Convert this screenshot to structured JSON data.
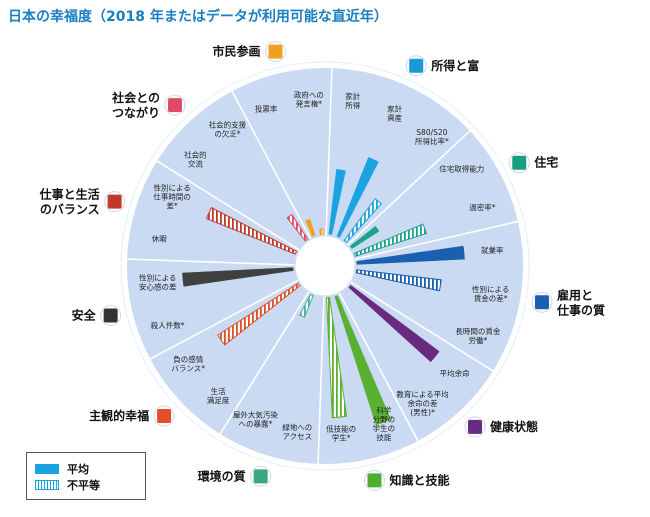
{
  "title": "日本の幸福度（2018 年またはデータが利用可能な直近年）",
  "legend": {
    "average": "平均",
    "inequality": "不平等"
  },
  "colors": {
    "ring": "#c9daf2",
    "separator": "#ffffff",
    "income": "#1aa3e0",
    "housing": "#1aa38a",
    "jobs": "#1a5fb0",
    "health": "#6a2a80",
    "knowledge": "#5ab030",
    "environment": "#4ab09a",
    "subjective": "#e0502a",
    "safety": "#404040",
    "worklife": "#c0392b",
    "social": "#e04a68",
    "civic": "#f0a020",
    "icon_income": "#1a9ad6",
    "icon_housing": "#15a07f",
    "icon_jobs": "#1a5fb0",
    "icon_health": "#6a2a80",
    "icon_knowledge": "#4caf30",
    "icon_environment": "#3aa77f",
    "icon_subjective": "#e0502a",
    "icon_safety": "#333333",
    "icon_worklife": "#c0392b",
    "icon_social": "#e04a68",
    "icon_civic": "#f0a020"
  },
  "chart_data": {
    "type": "bar",
    "layout": "radial",
    "scale": [
      0,
      1
    ],
    "series": [
      {
        "name": "平均"
      },
      {
        "name": "不平等"
      }
    ],
    "dimensions": [
      {
        "key": "income",
        "label_lines": [
          "所得と富"
        ],
        "color": "income",
        "icon": "money-icon",
        "indicators": [
          {
            "label": [
              "家計",
              "所得"
            ],
            "value": 0.42,
            "kind": "average"
          },
          {
            "label": [
              "家計",
              "資産"
            ],
            "value": 0.55,
            "kind": "average"
          },
          {
            "label": [
              "S80/S20",
              "所得比率*"
            ],
            "value": 0.33,
            "kind": "inequality"
          }
        ]
      },
      {
        "key": "housing",
        "label_lines": [
          "住宅"
        ],
        "color": "housing",
        "icon": "house-icon",
        "indicators": [
          {
            "label": [
              "住宅取得能力"
            ],
            "value": 0.2,
            "kind": "average"
          },
          {
            "label": [
              "過密率*"
            ],
            "value": 0.48,
            "kind": "inequality"
          }
        ]
      },
      {
        "key": "jobs",
        "label_lines": [
          "雇用と",
          "仕事の質"
        ],
        "color": "jobs",
        "icon": "briefcase-icon",
        "indicators": [
          {
            "label": [
              "就業率"
            ],
            "value": 0.7,
            "kind": "average"
          },
          {
            "label": [
              "性別による",
              "賃金の差*"
            ],
            "value": 0.55,
            "kind": "inequality"
          },
          {
            "label": [
              "長時間の賃金",
              "労働*"
            ],
            "value": 0.0,
            "kind": "inequality"
          }
        ]
      },
      {
        "key": "health",
        "label_lines": [
          "健康状態"
        ],
        "color": "health",
        "icon": "health-cross-icon",
        "indicators": [
          {
            "label": [
              "平均余命"
            ],
            "value": 0.72,
            "kind": "average"
          },
          {
            "label": [
              "教育による平均",
              "余命の差",
              "(男性)*"
            ],
            "value": 0.0,
            "kind": "inequality"
          }
        ]
      },
      {
        "key": "knowledge",
        "label_lines": [
          "知識と技能"
        ],
        "color": "knowledge",
        "icon": "book-icon",
        "indicators": [
          {
            "label": [
              "科学",
              "分野の",
              "学生の",
              "技能"
            ],
            "value": 0.88,
            "kind": "average"
          },
          {
            "label": [
              "低技能の",
              "学生*"
            ],
            "value": 0.78,
            "kind": "inequality"
          }
        ]
      },
      {
        "key": "environment",
        "label_lines": [
          "環境の質"
        ],
        "color": "environment",
        "icon": "tree-icon",
        "indicators": [
          {
            "label": [
              "緑地への",
              "アクセス"
            ],
            "value": 0.0,
            "kind": "average"
          },
          {
            "label": [
              "屋外大気汚染",
              "への暴露*"
            ],
            "value": 0.14,
            "kind": "inequality"
          }
        ]
      },
      {
        "key": "subjective",
        "label_lines": [
          "主観的幸福"
        ],
        "color": "subjective",
        "icon": "heart-icon",
        "indicators": [
          {
            "label": [
              "生活",
              "満足度"
            ],
            "value": 0.0,
            "kind": "average"
          },
          {
            "label": [
              "負の感情",
              "バランス*"
            ],
            "value": 0.62,
            "kind": "inequality"
          }
        ]
      },
      {
        "key": "safety",
        "label_lines": [
          "安全"
        ],
        "color": "safety",
        "icon": "runner-icon",
        "indicators": [
          {
            "label": [
              "殺人件数*"
            ],
            "value": 0.0,
            "kind": "average"
          },
          {
            "label": [
              "性別による",
              "安心感の差"
            ],
            "value": 0.72,
            "kind": "average"
          }
        ]
      },
      {
        "key": "worklife",
        "label_lines": [
          "仕事と生活",
          "のバランス"
        ],
        "color": "worklife",
        "icon": "scales-icon",
        "indicators": [
          {
            "label": [
              "休暇"
            ],
            "value": 0.0,
            "kind": "average"
          },
          {
            "label": [
              "性別による",
              "仕事時間の",
              "差*"
            ],
            "value": 0.62,
            "kind": "inequality"
          }
        ]
      },
      {
        "key": "social",
        "label_lines": [
          "社会との",
          "つながり"
        ],
        "color": "social",
        "icon": "people-icon",
        "indicators": [
          {
            "label": [
              "社会的",
              "交流"
            ],
            "value": 0.0,
            "kind": "average"
          },
          {
            "label": [
              "社会的支援",
              "の欠乏*"
            ],
            "value": 0.18,
            "kind": "inequality"
          }
        ]
      },
      {
        "key": "civic",
        "label_lines": [
          "市民参画"
        ],
        "color": "civic",
        "icon": "ballot-icon",
        "indicators": [
          {
            "label": [
              "投票率"
            ],
            "value": 0.1,
            "kind": "average"
          },
          {
            "label": [
              "政府への",
              "発言権*"
            ],
            "value": 0.02,
            "kind": "inequality"
          }
        ]
      }
    ]
  }
}
